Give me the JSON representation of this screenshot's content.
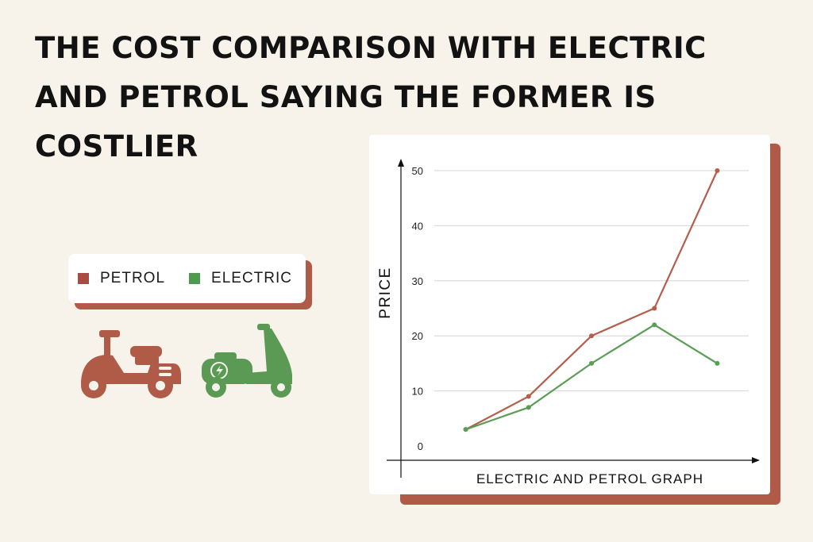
{
  "title": "THE COST COMPARISON WITH ELECTRIC AND PETROL SAYING THE FORMER IS COSTLIER",
  "legend": {
    "items": [
      {
        "label": "PETROL",
        "color": "#a94a43"
      },
      {
        "label": "ELECTRIC",
        "color": "#4e9a51"
      }
    ]
  },
  "icons": {
    "petrol_scooter": {
      "name": "scooter-icon",
      "color": "#b05a48"
    },
    "electric_scooter": {
      "name": "electric-scooter-icon",
      "color": "#5a9a55"
    }
  },
  "chart_data": {
    "type": "line",
    "x": [
      1,
      2,
      3,
      4,
      5
    ],
    "series": [
      {
        "name": "PETROL",
        "values": [
          3,
          9,
          20,
          25,
          50
        ],
        "color": "#b45e4b"
      },
      {
        "name": "ELECTRIC",
        "values": [
          3,
          7,
          15,
          22,
          15
        ],
        "color": "#5a9e55"
      }
    ],
    "xlabel": "ELECTRIC AND PETROL GRAPH",
    "ylabel": "PRICE",
    "ylim": [
      0,
      50
    ],
    "yticks": [
      0,
      10,
      20,
      30,
      40,
      50
    ],
    "grid": true,
    "legend": "left"
  }
}
